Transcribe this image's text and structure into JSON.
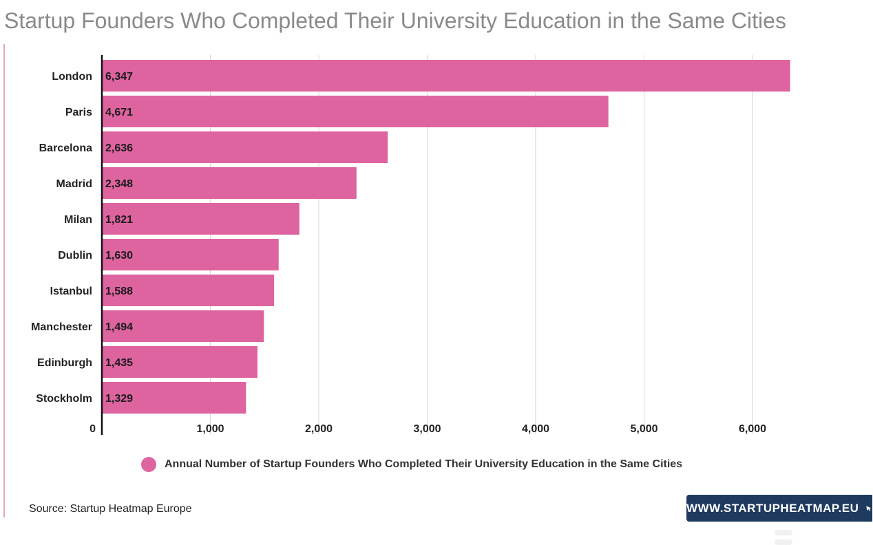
{
  "title": "Startup Founders Who Completed Their University Education in the Same Cities",
  "colors": {
    "bar": "#de64a0",
    "grid": "#d6d6d6",
    "axis": "#111111",
    "badge_bg": "#1f3a5f"
  },
  "chart_data": {
    "type": "bar",
    "orientation": "horizontal",
    "categories": [
      "London",
      "Paris",
      "Barcelona",
      "Madrid",
      "Milan",
      "Dublin",
      "Istanbul",
      "Manchester",
      "Edinburgh",
      "Stockholm"
    ],
    "values": [
      6347,
      4671,
      2636,
      2348,
      1821,
      1630,
      1588,
      1494,
      1435,
      1329
    ],
    "value_labels": [
      "6,347",
      "4,671",
      "2,636",
      "2,348",
      "1,821",
      "1,630",
      "1,588",
      "1,494",
      "1,435",
      "1,329"
    ],
    "xticks": [
      0,
      1000,
      2000,
      3000,
      4000,
      5000,
      6000
    ],
    "xtick_labels": [
      "0",
      "1,000",
      "2,000",
      "3,000",
      "4,000",
      "5,000",
      "6,000"
    ],
    "xlim": [
      0,
      6400
    ],
    "grid": true,
    "legend_position": "bottom",
    "series": [
      {
        "name": "Annual Number of Startup Founders Who Completed Their University Education in the Same Cities"
      }
    ]
  },
  "source": "Source: Startup Heatmap Europe",
  "badge": {
    "text": "WWW.STARTUPHEATMAP.EU",
    "icon": "cursor-arrow-icon"
  }
}
